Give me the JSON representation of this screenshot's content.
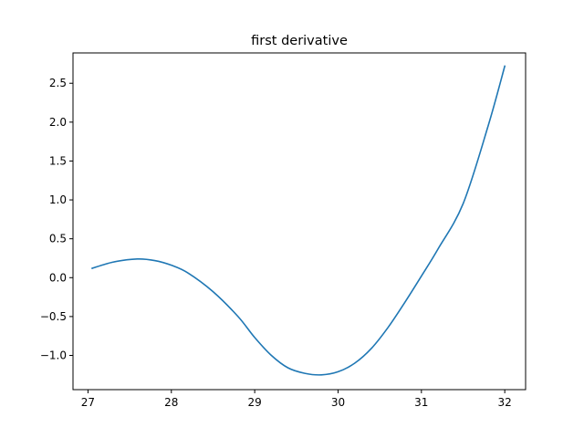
{
  "chart_data": {
    "type": "line",
    "title": "first derivative",
    "xlabel": "",
    "ylabel": "",
    "xlim": [
      26.82,
      32.25
    ],
    "ylim": [
      -1.44,
      2.89
    ],
    "x_ticks": [
      27,
      28,
      29,
      30,
      31,
      32
    ],
    "x_tick_labels": [
      "27",
      "28",
      "29",
      "30",
      "31",
      "32"
    ],
    "y_ticks": [
      -1.0,
      -0.5,
      0.0,
      0.5,
      1.0,
      1.5,
      2.0,
      2.5
    ],
    "y_tick_labels": [
      "−1.0",
      "−0.5",
      "0.0",
      "0.5",
      "1.0",
      "1.5",
      "2.0",
      "2.5"
    ],
    "grid": false,
    "legend": "none",
    "series": [
      {
        "color": "#1f77b4",
        "x": [
          27.05,
          27.3,
          27.59,
          27.8,
          28.0,
          28.2,
          28.5,
          28.8,
          29.0,
          29.2,
          29.4,
          29.6,
          29.8,
          30.0,
          30.2,
          30.4,
          30.6,
          30.8,
          31.0,
          31.2,
          31.5,
          31.8,
          32.0
        ],
        "y": [
          0.12,
          0.2,
          0.24,
          0.22,
          0.16,
          0.06,
          -0.18,
          -0.5,
          -0.77,
          -1.0,
          -1.16,
          -1.23,
          -1.25,
          -1.21,
          -1.1,
          -0.91,
          -0.64,
          -0.32,
          0.02,
          0.37,
          0.95,
          1.95,
          2.72
        ]
      }
    ]
  }
}
